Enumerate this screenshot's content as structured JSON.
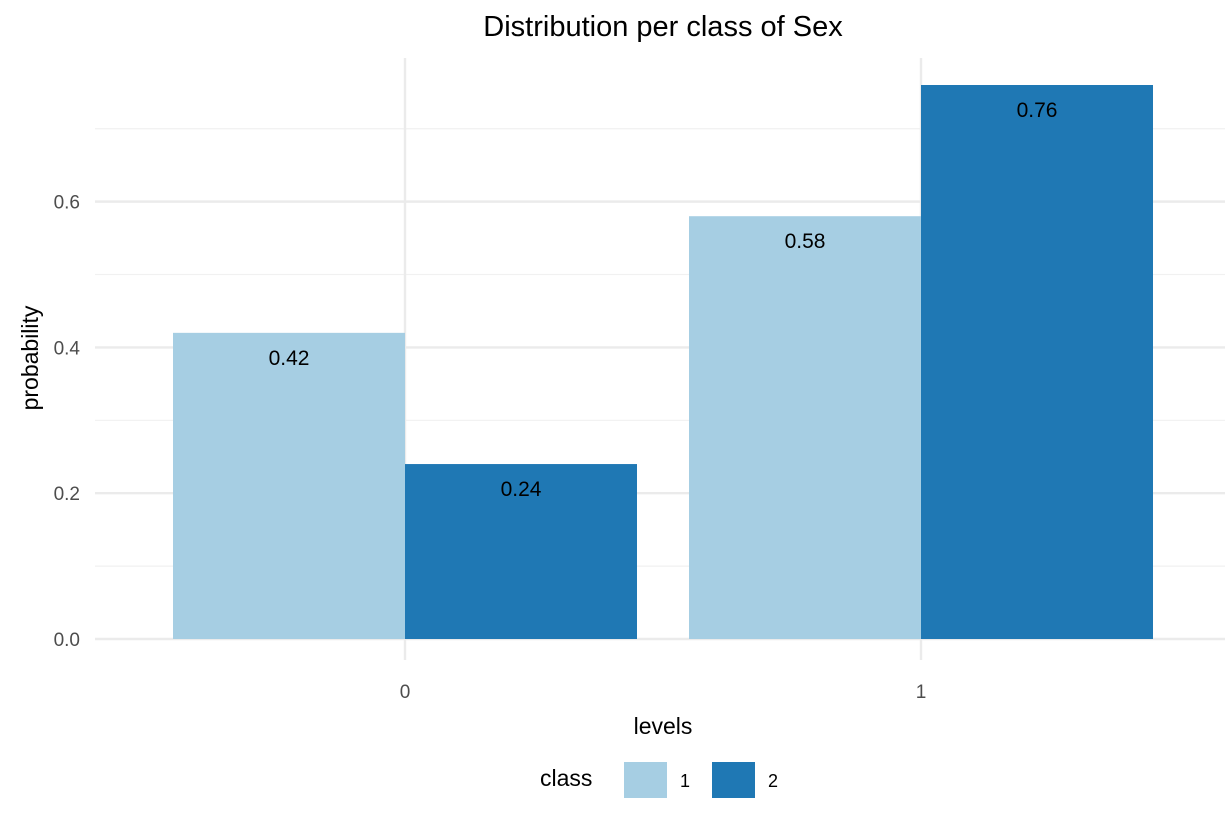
{
  "chart_data": {
    "type": "bar",
    "title": "Distribution per class of Sex",
    "xlabel": "levels",
    "ylabel": "probability",
    "categories": [
      "0",
      "1"
    ],
    "series": [
      {
        "name": "1",
        "values": [
          0.42,
          0.58
        ],
        "labels": [
          "0.42",
          "0.58"
        ],
        "color": "#a6cee3"
      },
      {
        "name": "2",
        "values": [
          0.24,
          0.76
        ],
        "labels": [
          "0.24",
          "0.76"
        ],
        "color": "#1f78b4"
      }
    ],
    "ylim": [
      0,
      0.76
    ],
    "yticks": [
      0.0,
      0.2,
      0.4,
      0.6
    ],
    "ytick_labels": [
      "0.0",
      "0.2",
      "0.4",
      "0.6"
    ],
    "grid": true,
    "legend": {
      "title": "class",
      "position": "bottom"
    }
  }
}
